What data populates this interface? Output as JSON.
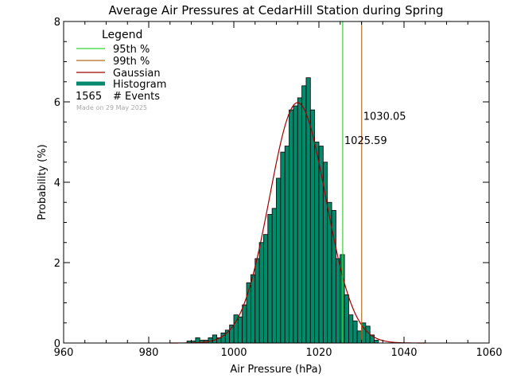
{
  "chart_data": {
    "type": "bar",
    "title": "Average Air Pressures at CedarHill Station during Spring",
    "xlabel": "Air Pressure (hPa)",
    "ylabel": "Probability (%)",
    "xlim": [
      960,
      1060
    ],
    "ylim": [
      0,
      8
    ],
    "x_ticks": [
      "960",
      "980",
      "1000",
      "1020",
      "1040",
      "1060"
    ],
    "y_ticks": [
      "0",
      "2",
      "4",
      "6",
      "8"
    ],
    "grid": false,
    "legend_position": "top-left",
    "legend": {
      "title": "Legend",
      "items": [
        "95th %",
        "99th %",
        "Gaussian",
        "Histogram"
      ],
      "events_count": "1565",
      "events_label": "# Events",
      "made_on": "Made on 29 May 2025"
    },
    "colors": {
      "histogram": "#00896b",
      "p95": "#33d633",
      "p99": "#b56a1f",
      "gaussian": "#a00000",
      "axis": "#000000"
    },
    "histogram": {
      "bin_width": 1,
      "bin_starts": [
        989,
        990,
        991,
        992,
        993,
        994,
        995,
        996,
        997,
        998,
        999,
        1000,
        1001,
        1002,
        1003,
        1004,
        1005,
        1006,
        1007,
        1008,
        1009,
        1010,
        1011,
        1012,
        1013,
        1014,
        1015,
        1016,
        1017,
        1018,
        1019,
        1020,
        1021,
        1022,
        1023,
        1024,
        1025,
        1026,
        1027,
        1028,
        1029,
        1030,
        1031,
        1032,
        1033
      ],
      "values": [
        0.05,
        0.05,
        0.13,
        0.07,
        0.07,
        0.13,
        0.2,
        0.13,
        0.25,
        0.32,
        0.45,
        0.7,
        0.65,
        0.95,
        1.5,
        1.7,
        2.1,
        2.5,
        2.7,
        3.2,
        3.35,
        4.1,
        4.75,
        4.9,
        5.8,
        5.9,
        6.1,
        6.4,
        6.6,
        5.8,
        5.0,
        4.9,
        4.5,
        3.5,
        3.3,
        2.1,
        2.2,
        1.2,
        0.7,
        0.55,
        0.3,
        0.5,
        0.42,
        0.2,
        0.07
      ]
    },
    "gaussian": {
      "mean": 1015.0,
      "sigma": 6.6,
      "peak": 5.98
    },
    "percentiles": [
      {
        "name": "95th %",
        "value": 1025.59,
        "label": "1025.59"
      },
      {
        "name": "99th %",
        "value": 1030.05,
        "label": "1030.05"
      }
    ]
  }
}
